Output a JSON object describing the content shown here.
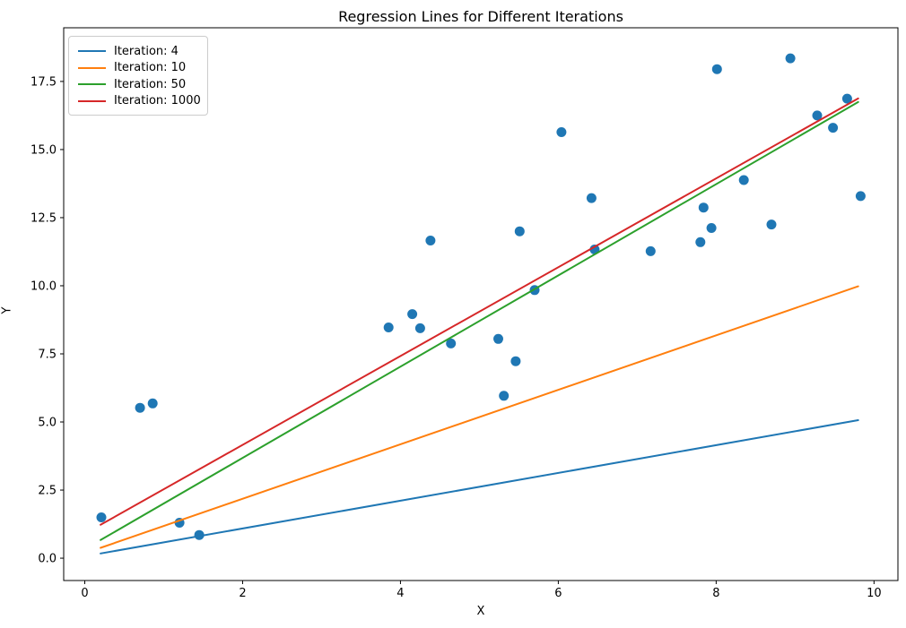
{
  "figure": {
    "background": "#ffffff",
    "spine_color": "#000000"
  },
  "chart_data": {
    "type": "scatter",
    "title": "Regression Lines for Different Iterations",
    "xlabel": "X",
    "ylabel": "Y",
    "xlim": [
      -0.267,
      10.303
    ],
    "ylim": [
      -0.82,
      19.47
    ],
    "x_ticks": [
      0,
      2,
      4,
      6,
      8,
      10
    ],
    "x_tick_labels": [
      "0",
      "2",
      "4",
      "6",
      "8",
      "10"
    ],
    "y_ticks": [
      0.0,
      2.5,
      5.0,
      7.5,
      10.0,
      12.5,
      15.0,
      17.5
    ],
    "y_tick_labels": [
      "0.0",
      "2.5",
      "5.0",
      "7.5",
      "10.0",
      "12.5",
      "15.0",
      "17.5"
    ],
    "grid": false,
    "legend_position": "upper left",
    "scatter": {
      "name": "data-points",
      "color": "#1f77b4",
      "marker_radius": 5.5,
      "points": [
        [
          0.21,
          1.5
        ],
        [
          0.7,
          5.52
        ],
        [
          0.86,
          5.68
        ],
        [
          1.2,
          1.3
        ],
        [
          1.45,
          0.85
        ],
        [
          3.85,
          8.47
        ],
        [
          4.15,
          8.96
        ],
        [
          4.25,
          8.44
        ],
        [
          4.38,
          11.66
        ],
        [
          4.64,
          7.88
        ],
        [
          5.24,
          8.05
        ],
        [
          5.31,
          5.96
        ],
        [
          5.46,
          7.23
        ],
        [
          5.51,
          12.0
        ],
        [
          5.7,
          9.84
        ],
        [
          6.04,
          15.64
        ],
        [
          6.42,
          13.22
        ],
        [
          6.46,
          11.33
        ],
        [
          7.17,
          11.27
        ],
        [
          7.8,
          11.6
        ],
        [
          7.84,
          12.87
        ],
        [
          7.94,
          12.12
        ],
        [
          8.01,
          17.95
        ],
        [
          8.35,
          13.88
        ],
        [
          8.7,
          12.25
        ],
        [
          8.94,
          18.35
        ],
        [
          9.28,
          16.25
        ],
        [
          9.48,
          15.8
        ],
        [
          9.66,
          16.87
        ],
        [
          9.83,
          13.29
        ]
      ]
    },
    "lines": [
      {
        "label": "Iteration: 4",
        "color": "#1f77b4",
        "slope": 0.51,
        "intercept": 0.07,
        "x_start": 0.2,
        "x_end": 9.8
      },
      {
        "label": "Iteration: 10",
        "color": "#ff7f0e",
        "slope": 1.0,
        "intercept": 0.18,
        "x_start": 0.2,
        "x_end": 9.8
      },
      {
        "label": "Iteration: 50",
        "color": "#2ca02c",
        "slope": 1.675,
        "intercept": 0.33,
        "x_start": 0.2,
        "x_end": 9.8
      },
      {
        "label": "Iteration: 1000",
        "color": "#d62728",
        "slope": 1.63,
        "intercept": 0.9,
        "x_start": 0.2,
        "x_end": 9.8
      }
    ]
  }
}
